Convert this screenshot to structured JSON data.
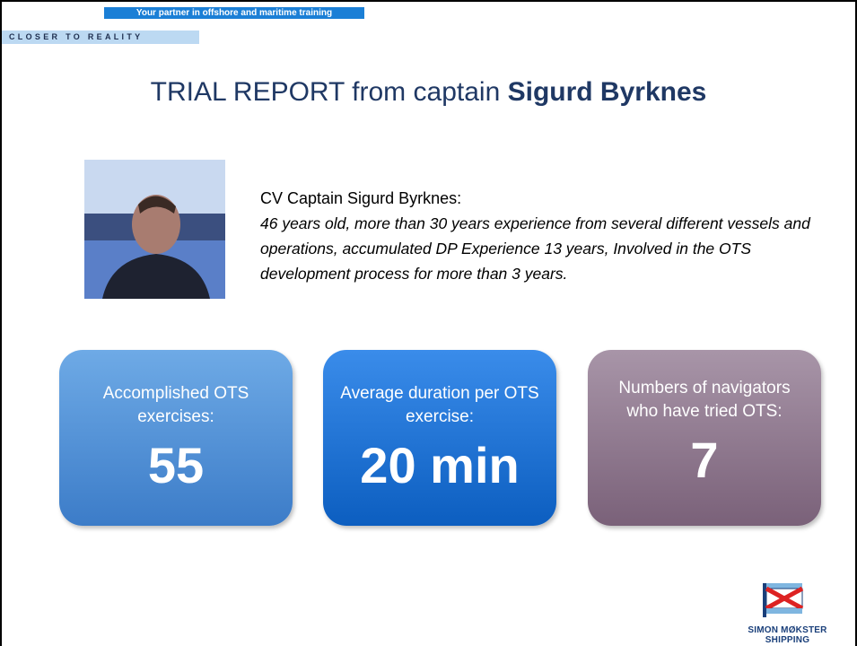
{
  "header": {
    "tagline": "Your partner in offshore and maritime training",
    "brand": "CLOSER TO REALITY"
  },
  "title": {
    "prefix": "TRIAL REPORT from captain ",
    "name": "Sigurd Byrknes"
  },
  "cv": {
    "heading": "CV Captain Sigurd Byrknes:",
    "text": "46 years old, more than 30 years experience from several different vessels and operations, accumulated DP Experience 13 years, Involved in the OTS development process for more than 3 years."
  },
  "stats": [
    {
      "label": "Accomplished OTS exercises:",
      "value": "55"
    },
    {
      "label": "Average duration per OTS  exercise:",
      "value": "20 min"
    },
    {
      "label": "Numbers of navigators who have tried OTS:",
      "value": "7"
    }
  ],
  "logo": {
    "name": "SIMON MØKSTER SHIPPING"
  }
}
